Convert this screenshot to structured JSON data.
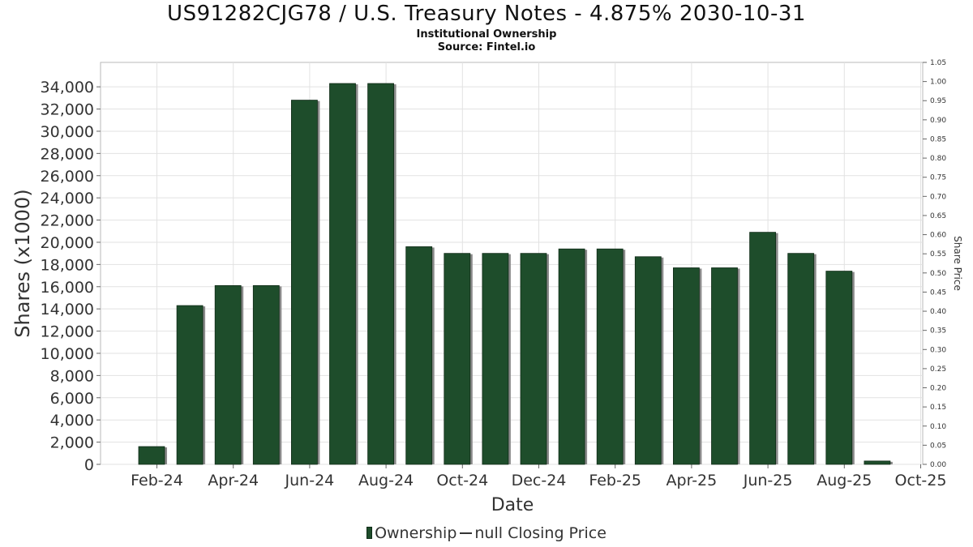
{
  "chart_data": {
    "type": "bar",
    "title": "US91282CJG78 / U.S. Treasury Notes - 4.875% 2030-10-31",
    "subtitle": "Institutional Ownership",
    "source": "Source: Fintel.io",
    "xlabel": "Date",
    "ylabel": "Shares (x1000)",
    "y2label": "Share Price",
    "x_tick_labels": [
      "Feb-24",
      "Apr-24",
      "Jun-24",
      "Aug-24",
      "Oct-24",
      "Dec-24",
      "Feb-25",
      "Apr-25",
      "Jun-25",
      "Aug-25",
      "Oct-25"
    ],
    "y_tick_labels": [
      "0",
      "2,000",
      "4,000",
      "6,000",
      "8,000",
      "10,000",
      "12,000",
      "14,000",
      "16,000",
      "18,000",
      "20,000",
      "22,000",
      "24,000",
      "26,000",
      "28,000",
      "30,000",
      "32,000",
      "34,000"
    ],
    "y2_tick_labels": [
      "0.00",
      "0.05",
      "0.10",
      "0.15",
      "0.20",
      "0.25",
      "0.30",
      "0.35",
      "0.40",
      "0.45",
      "0.50",
      "0.55",
      "0.60",
      "0.65",
      "0.70",
      "0.75",
      "0.80",
      "0.85",
      "0.90",
      "0.95",
      "1.00",
      "1.05"
    ],
    "ylim": [
      0,
      36200
    ],
    "y2lim": [
      0,
      1.05
    ],
    "grid": true,
    "legend_position": "bottom",
    "legend": [
      "Ownership",
      "null Closing Price"
    ],
    "series": [
      {
        "name": "Ownership",
        "color": "#1e4d2b",
        "values": [
          1600,
          14300,
          16100,
          16100,
          32800,
          34300,
          34300,
          19600,
          19000,
          19000,
          19000,
          19400,
          19400,
          18700,
          17700,
          17700,
          20900,
          19000,
          17400,
          300
        ]
      }
    ]
  }
}
